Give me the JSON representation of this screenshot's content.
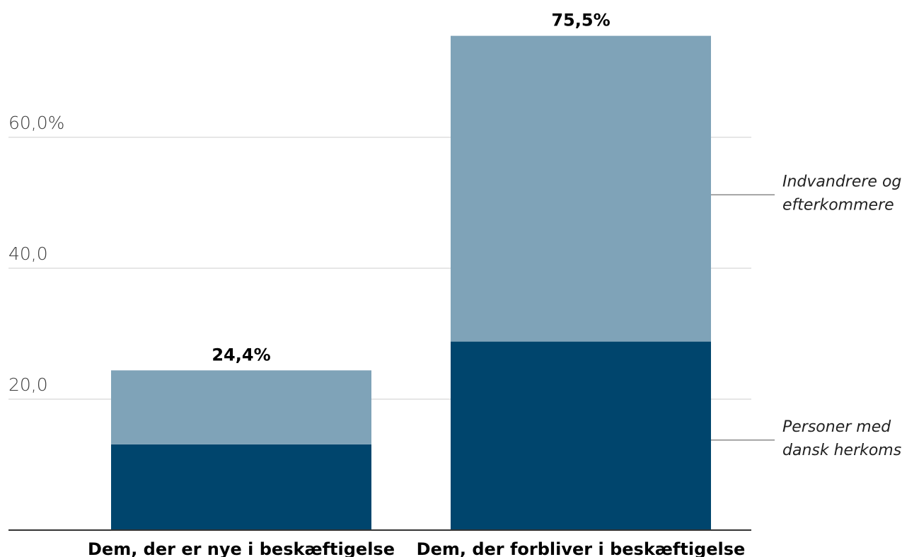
{
  "chart_data": {
    "type": "bar",
    "stacked": true,
    "title": "",
    "xlabel": "",
    "ylabel": "",
    "ylim": [
      0,
      75.5
    ],
    "yticks": [
      {
        "value": 20,
        "label": "20,0"
      },
      {
        "value": 40,
        "label": "40,0"
      },
      {
        "value": 60,
        "label": "60,0%"
      }
    ],
    "grid": true,
    "categories": [
      "Dem, der er nye i beskæftigelse",
      "Dem, der forbliver i beskæftigelse"
    ],
    "series": [
      {
        "name": "Personer med dansk herkomst",
        "label_lines": [
          "Personer med",
          "dansk herkomst"
        ],
        "color": "#00456d",
        "values": [
          13.1,
          28.8
        ]
      },
      {
        "name": "Indvandrere og efterkommere",
        "label_lines": [
          "Indvandrere og",
          "efterkommere"
        ],
        "color": "#7fa3b8",
        "values": [
          11.3,
          46.7
        ]
      }
    ],
    "totals": [
      {
        "value": 24.4,
        "label": "24,4%"
      },
      {
        "value": 75.5,
        "label": "75,5%"
      }
    ],
    "legend_placement": "right"
  }
}
